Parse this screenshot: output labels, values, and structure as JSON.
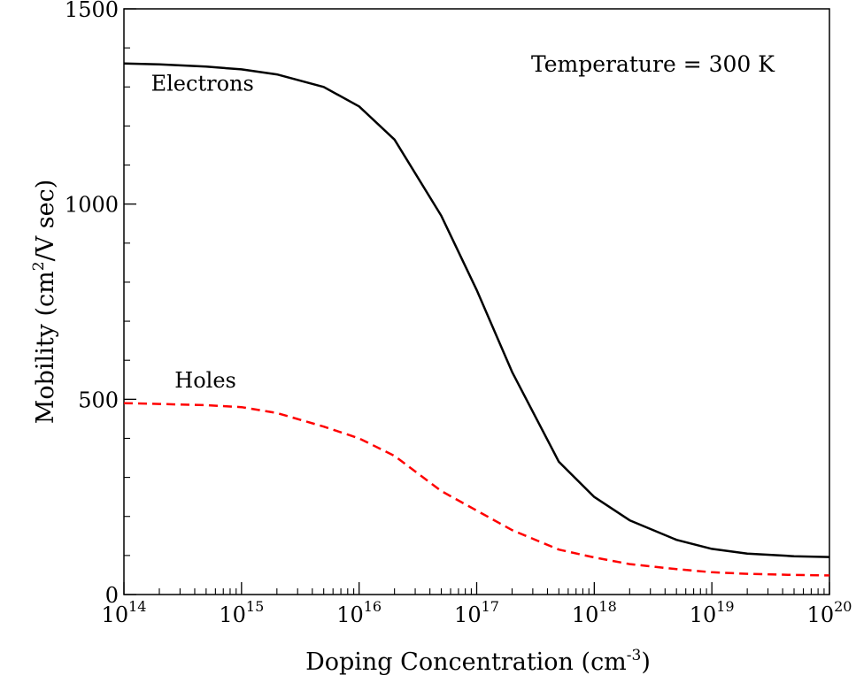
{
  "chart_data": {
    "type": "line",
    "title": "",
    "annotation": "Temperature = 300 K",
    "xlabel": {
      "main": "Doping Concentration (cm",
      "sup": "-3",
      "tail": ")"
    },
    "ylabel": {
      "main": "Mobility (cm",
      "sup": "2",
      "tail": "/V sec)"
    },
    "x_scale": "log",
    "xlim": [
      100000000000000.0,
      1e+20
    ],
    "ylim": [
      0,
      1500
    ],
    "x_ticks": [
      {
        "base": "10",
        "exp": "14",
        "value": 100000000000000.0
      },
      {
        "base": "10",
        "exp": "15",
        "value": 1000000000000000.0
      },
      {
        "base": "10",
        "exp": "16",
        "value": 1e+16
      },
      {
        "base": "10",
        "exp": "17",
        "value": 1e+17
      },
      {
        "base": "10",
        "exp": "18",
        "value": 1e+18
      },
      {
        "base": "10",
        "exp": "19",
        "value": 1e+19
      },
      {
        "base": "10",
        "exp": "20",
        "value": 1e+20
      }
    ],
    "y_ticks": [
      {
        "label": "0",
        "value": 0
      },
      {
        "label": "500",
        "value": 500
      },
      {
        "label": "1000",
        "value": 1000
      },
      {
        "label": "1500",
        "value": 1500
      }
    ],
    "series": [
      {
        "name": "Electrons",
        "color": "#000000",
        "dash": "solid",
        "label_at": {
          "x": 170000000000000.0,
          "y": 1290
        },
        "points": [
          [
            100000000000000.0,
            1360
          ],
          [
            200000000000000.0,
            1358
          ],
          [
            500000000000000.0,
            1352
          ],
          [
            1000000000000000.0,
            1345
          ],
          [
            2000000000000000.0,
            1332
          ],
          [
            5000000000000000.0,
            1300
          ],
          [
            1e+16,
            1250
          ],
          [
            2e+16,
            1165
          ],
          [
            5e+16,
            970
          ],
          [
            1e+17,
            780
          ],
          [
            2e+17,
            570
          ],
          [
            5e+17,
            340
          ],
          [
            1e+18,
            250
          ],
          [
            2e+18,
            190
          ],
          [
            5e+18,
            140
          ],
          [
            1e+19,
            117
          ],
          [
            2e+19,
            105
          ],
          [
            5e+19,
            98
          ],
          [
            1e+20,
            96
          ]
        ]
      },
      {
        "name": "Holes",
        "color": "#ff0000",
        "dash": "dashed",
        "label_at": {
          "x": 270000000000000.0,
          "y": 530
        },
        "points": [
          [
            100000000000000.0,
            490
          ],
          [
            200000000000000.0,
            488
          ],
          [
            500000000000000.0,
            485
          ],
          [
            1000000000000000.0,
            480
          ],
          [
            2000000000000000.0,
            465
          ],
          [
            5000000000000000.0,
            430
          ],
          [
            1e+16,
            400
          ],
          [
            2e+16,
            355
          ],
          [
            5e+16,
            265
          ],
          [
            1e+17,
            215
          ],
          [
            2e+17,
            165
          ],
          [
            5e+17,
            115
          ],
          [
            1e+18,
            95
          ],
          [
            2e+18,
            78
          ],
          [
            5e+18,
            65
          ],
          [
            1e+19,
            57
          ],
          [
            2e+19,
            53
          ],
          [
            5e+19,
            50
          ],
          [
            1e+20,
            49
          ]
        ]
      }
    ]
  }
}
